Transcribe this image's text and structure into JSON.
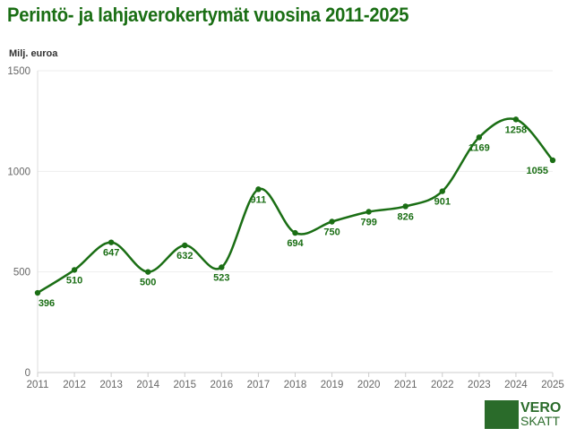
{
  "chart_data": {
    "type": "line",
    "title": "Perintö- ja lahjaverokertymät vuosina 2011-2025",
    "ylabel": "Milj. euroa",
    "xlabel": "",
    "x": [
      2011,
      2012,
      2013,
      2014,
      2015,
      2016,
      2017,
      2018,
      2019,
      2020,
      2021,
      2022,
      2023,
      2024,
      2025
    ],
    "values": [
      396,
      510,
      647,
      500,
      632,
      523,
      911,
      694,
      750,
      799,
      826,
      901,
      1169,
      1258,
      1055
    ],
    "ylim": [
      0,
      1500
    ],
    "yticks": [
      0,
      500,
      1000,
      1500
    ],
    "grid": true,
    "smooth": true,
    "color": "#1a6e14"
  },
  "logo": {
    "line1": "VERO",
    "line2": "SKATT",
    "color": "#2a6b2a"
  }
}
